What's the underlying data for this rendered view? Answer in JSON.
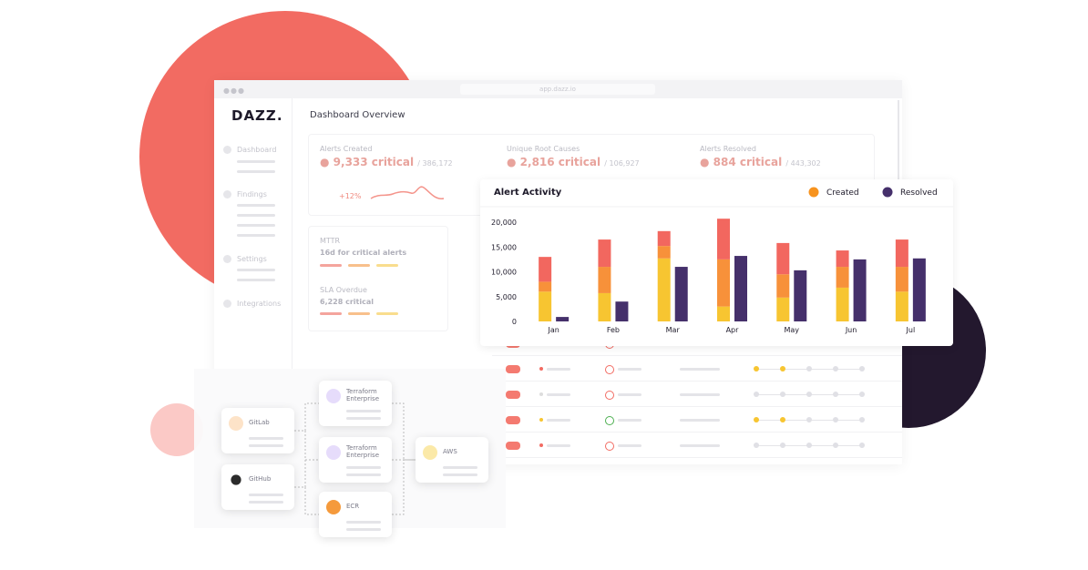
{
  "browser": {
    "url": "app.dazz.io"
  },
  "logo": "DAZZ.",
  "sidebar": [
    "Dashboard",
    "Findings",
    "Settings",
    "Integrations"
  ],
  "header": {
    "title": "Dashboard Overview"
  },
  "kpis": [
    {
      "label": "Alerts Created",
      "value": "9,333 critical",
      "total": "/ 386,172",
      "change": "+12%"
    },
    {
      "label": "Unique Root Causes",
      "value": "2,816 critical",
      "total": "/ 106,927"
    },
    {
      "label": "Alerts Resolved",
      "value": "884 critical",
      "total": "/ 443,302"
    }
  ],
  "sla_card": {
    "mttr_label": "MTTR",
    "mttr_value": "16d for critical alerts",
    "sla_label": "SLA Overdue",
    "sla_value": "6,228 critical"
  },
  "chart_data": {
    "type": "bar",
    "title": "Alert Activity",
    "categories": [
      "Jan",
      "Feb",
      "Mar",
      "Apr",
      "May",
      "Jun",
      "Jul"
    ],
    "series": [
      {
        "name": "Created",
        "color": "#f7931e",
        "segments": [
          {
            "color": "#f7c531",
            "values": [
              6000,
              5700,
              12700,
              3000,
              4800,
              6800,
              6000
            ]
          },
          {
            "color": "#f7913a",
            "values": [
              2000,
              5300,
              2500,
              9500,
              4700,
              4200,
              5000
            ]
          },
          {
            "color": "#f2675f",
            "values": [
              5000,
              5500,
              3000,
              8200,
              6300,
              3300,
              5500
            ]
          }
        ]
      },
      {
        "name": "Resolved",
        "color": "#45306b",
        "values": [
          900,
          4000,
          11000,
          13200,
          10300,
          12500,
          12700
        ]
      }
    ],
    "ylim": [
      0,
      20000
    ],
    "yticks": [
      0,
      {
        "value": 5000,
        "label": "5,000"
      },
      {
        "value": 10000,
        "label": "10,000"
      },
      {
        "value": 15000,
        "label": "15,000"
      },
      {
        "value": 20000,
        "label": "20,000"
      }
    ],
    "legend": "top-right",
    "grid": false
  },
  "pipeline": {
    "nodes": [
      "GitLab",
      "GitHub",
      "Terraform Enterprise",
      "Terraform Enterprise",
      "ECR",
      "AWS"
    ]
  }
}
